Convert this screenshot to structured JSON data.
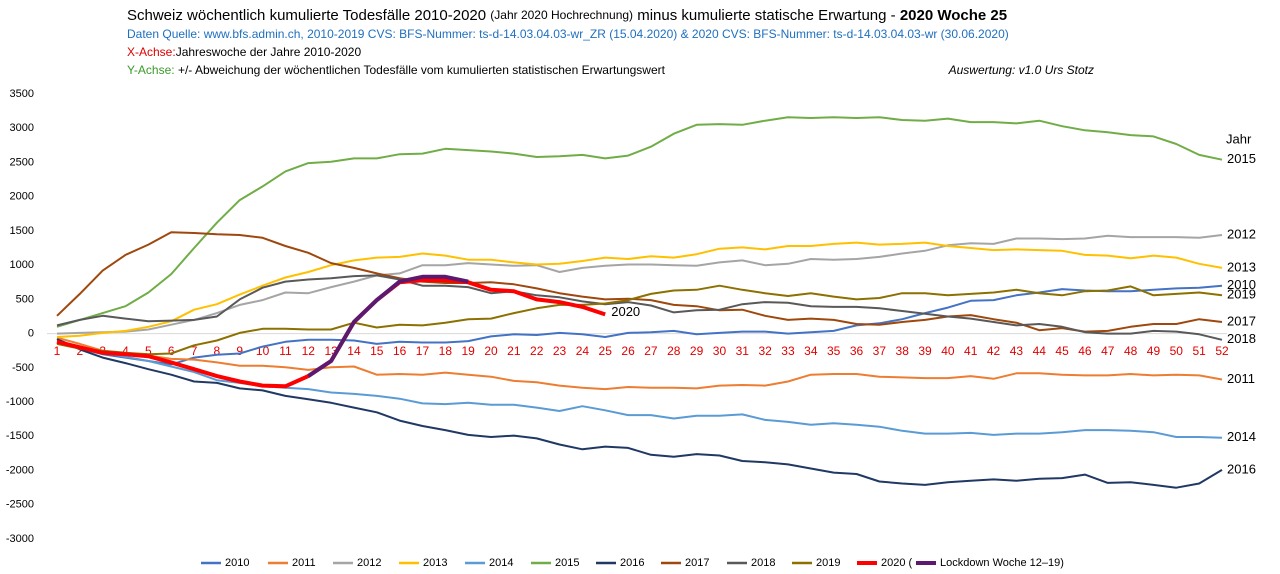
{
  "chart_data": {
    "type": "line",
    "title": [
      "Schweiz wöchentlich kumulierte Todesfälle 2010-2020",
      "(Jahr 2020 Hochrechnung)",
      "minus kumulierte statische Erwartung -",
      "2020  Woche  25"
    ],
    "subtitle": "Daten Quelle: www.bfs.admin.ch,    2010-2019 CVS: BFS-Nummer: ts-d-14.03.04.03-wr_ZR (15.04.2020)   &   2020 CVS: BFS-Nummer: ts-d-14.03.04.03-wr (30.06.2020)",
    "x_label": [
      "X-Achse:",
      "Jahreswoche der Jahre 2010-2020"
    ],
    "y_label": [
      "Y-Achse:",
      "+/- Abweichung der wöchentlichen Todesfälle vom kumulierten statistischen Erwartungswert"
    ],
    "author": "Auswertung: v1.0 Urs Stotz",
    "legend_title": "Jahr",
    "annotation": "2020",
    "categories": [
      1,
      2,
      3,
      4,
      5,
      6,
      7,
      8,
      9,
      10,
      11,
      12,
      13,
      14,
      15,
      16,
      17,
      18,
      19,
      20,
      21,
      22,
      23,
      24,
      25,
      26,
      27,
      28,
      29,
      30,
      31,
      32,
      33,
      34,
      35,
      36,
      37,
      38,
      39,
      40,
      41,
      42,
      43,
      44,
      45,
      46,
      47,
      48,
      49,
      50,
      51,
      52
    ],
    "ylim": [
      -3000,
      3500
    ],
    "yticks": [
      -3000,
      -2500,
      -2000,
      -1500,
      -1000,
      -500,
      0,
      500,
      1000,
      1500,
      2000,
      2500,
      3000,
      3500
    ],
    "series": [
      {
        "name": "2010",
        "color": "#4472c4",
        "values": [
          -80,
          -220,
          -300,
          -350,
          -400,
          -450,
          -350,
          -310,
          -290,
          -190,
          -120,
          -90,
          -90,
          -100,
          -150,
          -120,
          -130,
          -130,
          -110,
          -40,
          -10,
          -20,
          10,
          -10,
          -50,
          10,
          20,
          40,
          -10,
          10,
          30,
          30,
          0,
          20,
          40,
          120,
          150,
          210,
          300,
          380,
          480,
          490,
          560,
          600,
          650,
          630,
          620,
          620,
          640,
          660,
          670,
          700
        ]
      },
      {
        "name": "2011",
        "color": "#ed7d31",
        "values": [
          -60,
          -150,
          -250,
          -300,
          -320,
          -370,
          -380,
          -420,
          -470,
          -470,
          -490,
          -530,
          -490,
          -480,
          -600,
          -590,
          -600,
          -570,
          -600,
          -630,
          -690,
          -710,
          -760,
          -790,
          -810,
          -780,
          -790,
          -790,
          -800,
          -760,
          -750,
          -760,
          -700,
          -600,
          -590,
          -590,
          -630,
          -640,
          -650,
          -650,
          -620,
          -660,
          -580,
          -580,
          -600,
          -610,
          -610,
          -590,
          -610,
          -600,
          -610,
          -670
        ]
      },
      {
        "name": "2012",
        "color": "#a5a5a5",
        "values": [
          0,
          10,
          20,
          30,
          60,
          130,
          200,
          300,
          420,
          490,
          600,
          590,
          680,
          760,
          850,
          880,
          1000,
          1000,
          1030,
          1010,
          990,
          1000,
          900,
          960,
          990,
          1010,
          1010,
          1000,
          990,
          1040,
          1070,
          1000,
          1020,
          1090,
          1080,
          1090,
          1120,
          1170,
          1210,
          1290,
          1320,
          1310,
          1390,
          1390,
          1380,
          1390,
          1430,
          1410,
          1410,
          1410,
          1400,
          1440
        ]
      },
      {
        "name": "2013",
        "color": "#ffc000",
        "values": [
          -50,
          -30,
          10,
          40,
          100,
          180,
          350,
          430,
          570,
          700,
          820,
          900,
          1000,
          1070,
          1110,
          1120,
          1170,
          1140,
          1080,
          1080,
          1040,
          1010,
          1020,
          1060,
          1110,
          1090,
          1130,
          1110,
          1160,
          1240,
          1260,
          1230,
          1280,
          1280,
          1310,
          1330,
          1300,
          1310,
          1330,
          1280,
          1250,
          1220,
          1230,
          1220,
          1210,
          1150,
          1140,
          1100,
          1140,
          1110,
          1020,
          960
        ]
      },
      {
        "name": "2014",
        "color": "#5b9bd5",
        "values": [
          -100,
          -200,
          -270,
          -340,
          -400,
          -480,
          -560,
          -680,
          -720,
          -770,
          -790,
          -810,
          -860,
          -880,
          -910,
          -950,
          -1020,
          -1030,
          -1010,
          -1040,
          -1040,
          -1080,
          -1130,
          -1060,
          -1120,
          -1190,
          -1190,
          -1240,
          -1200,
          -1200,
          -1180,
          -1260,
          -1290,
          -1330,
          -1310,
          -1330,
          -1360,
          -1420,
          -1460,
          -1460,
          -1450,
          -1480,
          -1460,
          -1460,
          -1440,
          -1410,
          -1410,
          -1420,
          -1440,
          -1510,
          -1510,
          -1520
        ]
      },
      {
        "name": "2015",
        "color": "#70ad47",
        "values": [
          100,
          200,
          300,
          400,
          600,
          870,
          1250,
          1620,
          1950,
          2150,
          2370,
          2490,
          2510,
          2560,
          2560,
          2620,
          2630,
          2700,
          2680,
          2660,
          2630,
          2580,
          2590,
          2610,
          2560,
          2600,
          2730,
          2920,
          3050,
          3060,
          3050,
          3110,
          3160,
          3150,
          3160,
          3150,
          3160,
          3120,
          3110,
          3140,
          3090,
          3090,
          3070,
          3110,
          3030,
          2970,
          2940,
          2900,
          2880,
          2770,
          2610,
          2540
        ]
      },
      {
        "name": "2016",
        "color": "#203864",
        "values": [
          -80,
          -230,
          -350,
          -430,
          -520,
          -600,
          -700,
          -720,
          -800,
          -830,
          -910,
          -960,
          -1010,
          -1080,
          -1150,
          -1270,
          -1350,
          -1410,
          -1480,
          -1510,
          -1490,
          -1530,
          -1620,
          -1690,
          -1650,
          -1670,
          -1770,
          -1800,
          -1760,
          -1780,
          -1860,
          -1880,
          -1910,
          -1970,
          -2030,
          -2050,
          -2160,
          -2190,
          -2210,
          -2170,
          -2150,
          -2130,
          -2150,
          -2120,
          -2110,
          -2060,
          -2180,
          -2170,
          -2210,
          -2250,
          -2190,
          -1990
        ]
      },
      {
        "name": "2017",
        "color": "#9e480e",
        "values": [
          260,
          580,
          920,
          1150,
          1300,
          1480,
          1470,
          1450,
          1440,
          1400,
          1280,
          1180,
          1030,
          960,
          880,
          810,
          760,
          740,
          740,
          750,
          720,
          660,
          590,
          540,
          500,
          510,
          490,
          420,
          400,
          340,
          350,
          260,
          200,
          220,
          200,
          140,
          130,
          170,
          200,
          250,
          270,
          210,
          160,
          50,
          80,
          30,
          40,
          100,
          140,
          140,
          210,
          170
        ]
      },
      {
        "name": "2018",
        "color": "#595959",
        "values": [
          120,
          200,
          260,
          220,
          180,
          190,
          200,
          250,
          500,
          670,
          760,
          790,
          810,
          840,
          850,
          790,
          700,
          700,
          680,
          590,
          620,
          560,
          530,
          470,
          430,
          460,
          410,
          310,
          340,
          350,
          430,
          460,
          450,
          400,
          390,
          390,
          370,
          330,
          290,
          250,
          220,
          170,
          120,
          140,
          100,
          20,
          0,
          0,
          40,
          30,
          -10,
          -90
        ]
      },
      {
        "name": "2019",
        "color": "#8c7000",
        "values": [
          -150,
          -220,
          -250,
          -280,
          -300,
          -290,
          -170,
          -100,
          10,
          70,
          70,
          60,
          60,
          160,
          90,
          130,
          120,
          160,
          210,
          220,
          300,
          370,
          420,
          420,
          440,
          490,
          580,
          630,
          640,
          700,
          640,
          590,
          550,
          590,
          540,
          500,
          520,
          590,
          590,
          560,
          580,
          600,
          640,
          590,
          560,
          620,
          630,
          690,
          560,
          580,
          600,
          560
        ]
      },
      {
        "name": "2020 (",
        "color": "#ff0000",
        "width": 4,
        "values": [
          -120,
          -200,
          -280,
          -300,
          -330,
          -420,
          -520,
          -620,
          -700,
          -760,
          -770,
          -620,
          -400,
          170,
          490,
          750,
          780,
          780,
          750,
          640,
          620,
          500,
          460,
          390,
          280,
          null,
          null,
          null,
          null,
          null,
          null,
          null,
          null,
          null,
          null,
          null,
          null,
          null,
          null,
          null,
          null,
          null,
          null,
          null,
          null,
          null,
          null,
          null,
          null,
          null,
          null,
          null
        ]
      },
      {
        "name": "Lockdown Woche 12–19)",
        "color": "#5b1a70",
        "width": 4,
        "values": [
          null,
          null,
          null,
          null,
          null,
          null,
          null,
          null,
          null,
          null,
          null,
          -620,
          -400,
          170,
          490,
          760,
          830,
          830,
          760,
          null,
          null,
          null,
          null,
          null,
          null,
          null,
          null,
          null,
          null,
          null,
          null,
          null,
          null,
          null,
          null,
          null,
          null,
          null,
          null,
          null,
          null,
          null,
          null,
          null,
          null,
          null,
          null,
          null,
          null,
          null,
          null,
          null
        ]
      }
    ]
  }
}
